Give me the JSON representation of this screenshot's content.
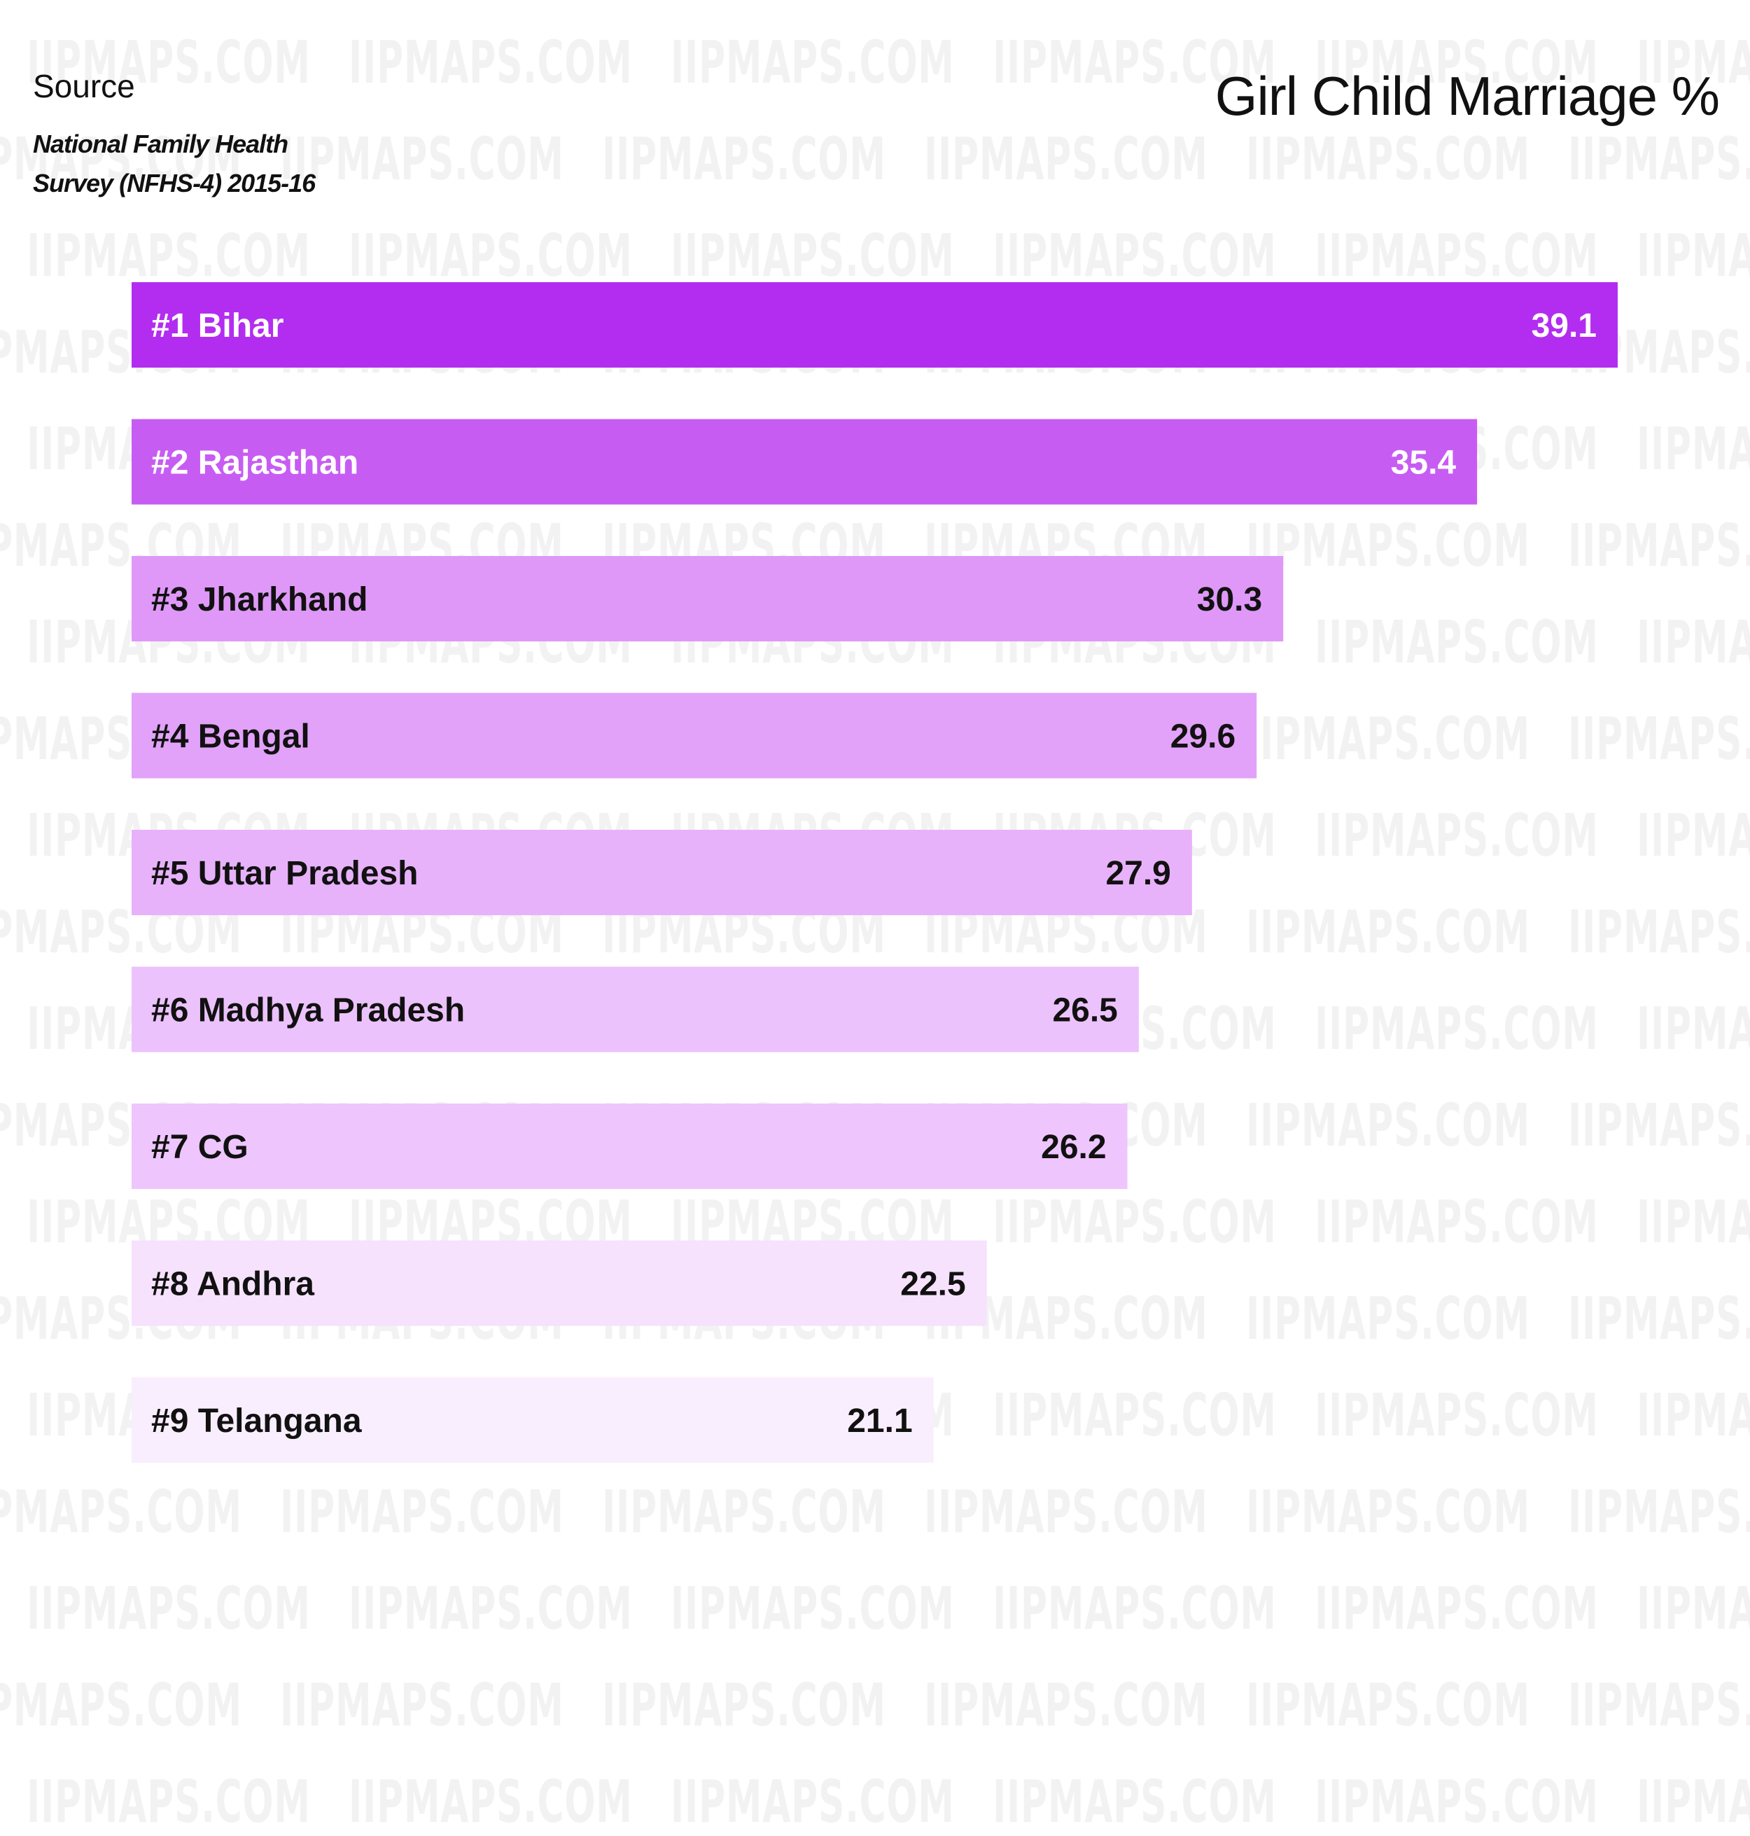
{
  "watermark_text": "IIPMAPS.COM",
  "source": {
    "label": "Source",
    "text": "National Family Health Survey (NFHS-4) 2015-16"
  },
  "colors": {
    "text_dark": "#111111",
    "text_light": "#ffffff",
    "bars": [
      "#b32df0",
      "#c75cf3",
      "#df98f8",
      "#e2a2f9",
      "#e7b2fa",
      "#ecc2fc",
      "#eec5fc",
      "#f6e2fd",
      "#f9eefe"
    ]
  },
  "chart_data": {
    "type": "bar",
    "orientation": "horizontal",
    "title": "Girl Child Marriage %",
    "categories": [
      "#1 Bihar",
      "#2 Rajasthan",
      "#3 Jharkhand",
      "#4 Bengal",
      "#5 Uttar Pradesh",
      "#6 Madhya Pradesh",
      "#7 CG",
      "#8 Andhra",
      "#9 Telangana"
    ],
    "values": [
      39.1,
      35.4,
      30.3,
      29.6,
      27.9,
      26.5,
      26.2,
      22.5,
      21.1
    ],
    "xlim": [
      0,
      39.1
    ],
    "grid": false,
    "legend": "none"
  }
}
